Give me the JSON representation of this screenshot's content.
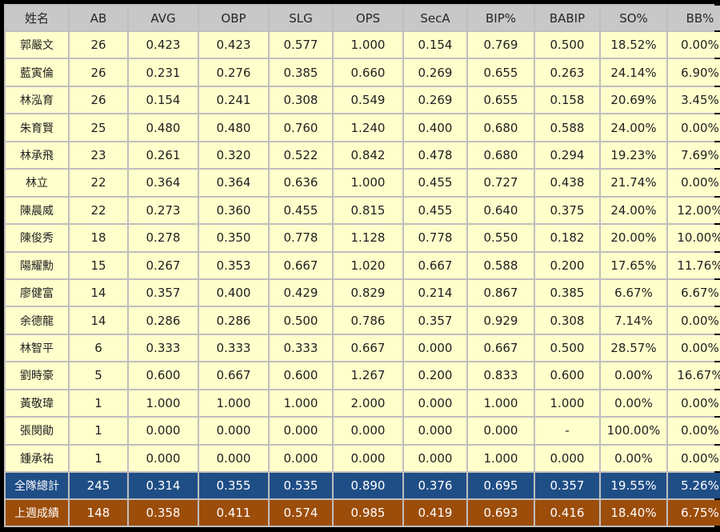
{
  "columns": [
    "姓名",
    "AB",
    "AVG",
    "OBP",
    "SLG",
    "OPS",
    "SecA",
    "BIP%",
    "BABIP",
    "SO%",
    "BB%"
  ],
  "players": [
    [
      "郭嚴文",
      "26",
      "0.423",
      "0.423",
      "0.577",
      "1.000",
      "0.154",
      "0.769",
      "0.500",
      "18.52%",
      "0.00%"
    ],
    [
      "藍寅倫",
      "26",
      "0.231",
      "0.276",
      "0.385",
      "0.660",
      "0.269",
      "0.655",
      "0.263",
      "24.14%",
      "6.90%"
    ],
    [
      "林泓育",
      "26",
      "0.154",
      "0.241",
      "0.308",
      "0.549",
      "0.269",
      "0.655",
      "0.158",
      "20.69%",
      "3.45%"
    ],
    [
      "朱育賢",
      "25",
      "0.480",
      "0.480",
      "0.760",
      "1.240",
      "0.400",
      "0.680",
      "0.588",
      "24.00%",
      "0.00%"
    ],
    [
      "林承飛",
      "23",
      "0.261",
      "0.320",
      "0.522",
      "0.842",
      "0.478",
      "0.680",
      "0.294",
      "19.23%",
      "7.69%"
    ],
    [
      "林立",
      "22",
      "0.364",
      "0.364",
      "0.636",
      "1.000",
      "0.455",
      "0.727",
      "0.438",
      "21.74%",
      "0.00%"
    ],
    [
      "陳晨威",
      "22",
      "0.273",
      "0.360",
      "0.455",
      "0.815",
      "0.455",
      "0.640",
      "0.375",
      "24.00%",
      "12.00%"
    ],
    [
      "陳俊秀",
      "18",
      "0.278",
      "0.350",
      "0.778",
      "1.128",
      "0.778",
      "0.550",
      "0.182",
      "20.00%",
      "10.00%"
    ],
    [
      "陽耀勳",
      "15",
      "0.267",
      "0.353",
      "0.667",
      "1.020",
      "0.667",
      "0.588",
      "0.200",
      "17.65%",
      "11.76%"
    ],
    [
      "廖健富",
      "14",
      "0.357",
      "0.400",
      "0.429",
      "0.829",
      "0.214",
      "0.867",
      "0.385",
      "6.67%",
      "6.67%"
    ],
    [
      "余德龍",
      "14",
      "0.286",
      "0.286",
      "0.500",
      "0.786",
      "0.357",
      "0.929",
      "0.308",
      "7.14%",
      "0.00%"
    ],
    [
      "林智平",
      "6",
      "0.333",
      "0.333",
      "0.333",
      "0.667",
      "0.000",
      "0.667",
      "0.500",
      "28.57%",
      "0.00%"
    ],
    [
      "劉時豪",
      "5",
      "0.600",
      "0.667",
      "0.600",
      "1.267",
      "0.200",
      "0.833",
      "0.600",
      "0.00%",
      "16.67%"
    ],
    [
      "黃敬瑋",
      "1",
      "1.000",
      "1.000",
      "1.000",
      "2.000",
      "0.000",
      "1.000",
      "1.000",
      "0.00%",
      "0.00%"
    ],
    [
      "張閔勛",
      "1",
      "0.000",
      "0.000",
      "0.000",
      "0.000",
      "0.000",
      "0.000",
      "-",
      "100.00%",
      "0.00%"
    ],
    [
      "鍾承祐",
      "1",
      "0.000",
      "0.000",
      "0.000",
      "0.000",
      "0.000",
      "1.000",
      "0.000",
      "0.00%",
      "0.00%"
    ]
  ],
  "team_total": [
    "全隊總計",
    "245",
    "0.314",
    "0.355",
    "0.535",
    "0.890",
    "0.376",
    "0.695",
    "0.357",
    "19.55%",
    "5.26%"
  ],
  "last_week": [
    "上週成績",
    "148",
    "0.358",
    "0.411",
    "0.574",
    "0.985",
    "0.419",
    "0.693",
    "0.416",
    "18.40%",
    "6.75%"
  ],
  "colors": {
    "header_bg": "#c8c8c8",
    "row_bg": "#ffffcc",
    "team_total_bg": "#1f4e86",
    "last_week_bg": "#9c4d0a"
  }
}
